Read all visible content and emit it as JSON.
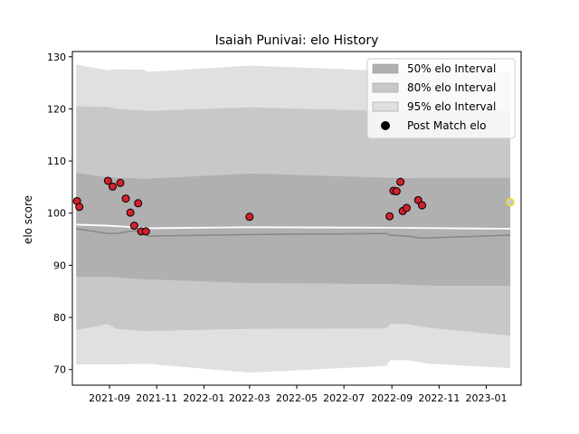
{
  "chart_data": {
    "type": "scatter",
    "title": "Isaiah Punivai: elo History",
    "xlabel": "",
    "ylabel": "elo score",
    "ylim": [
      67,
      131
    ],
    "xlim": [
      "2021-07-15",
      "2023-02-15"
    ],
    "x_ticks": [
      "2021-09",
      "2021-11",
      "2022-01",
      "2022-03",
      "2022-05",
      "2022-07",
      "2022-09",
      "2022-11",
      "2023-01"
    ],
    "y_ticks": [
      70,
      80,
      90,
      100,
      110,
      120,
      130
    ],
    "grid": false,
    "legend_placement": "top-right",
    "legend": [
      {
        "label": "50% elo Interval",
        "color": "#b0b0b0"
      },
      {
        "label": "80% elo Interval",
        "color": "#c8c8c8"
      },
      {
        "label": "95% elo Interval",
        "color": "#e0e0e0"
      },
      {
        "label": "Post Match elo",
        "color": "#000000"
      }
    ],
    "interval_x": [
      "2021-07-20",
      "2021-08-30",
      "2021-09-10",
      "2021-10-15",
      "2021-10-20",
      "2022-03-01",
      "2022-08-25",
      "2022-08-30",
      "2022-09-20",
      "2022-10-20",
      "2023-02-01"
    ],
    "bands": {
      "p95_upper": [
        128.5,
        127.4,
        127.6,
        127.5,
        127.1,
        128.3,
        127.3,
        127.2,
        127.2,
        127.2,
        127.2
      ],
      "p95_lower": [
        71.0,
        71.0,
        71.0,
        71.1,
        71.1,
        69.4,
        70.7,
        71.8,
        71.8,
        71.1,
        70.3
      ],
      "p80_upper": [
        120.5,
        120.4,
        120.0,
        119.7,
        119.6,
        120.3,
        119.6,
        119.6,
        119.6,
        119.6,
        119.6
      ],
      "p80_lower": [
        77.6,
        78.7,
        77.8,
        77.4,
        77.4,
        77.8,
        77.9,
        78.8,
        78.7,
        78.0,
        76.5
      ],
      "p50_upper": [
        107.7,
        106.9,
        106.8,
        106.6,
        106.6,
        107.6,
        106.8,
        106.8,
        106.7,
        106.8,
        106.8
      ],
      "p50_lower": [
        87.8,
        87.8,
        87.7,
        87.3,
        87.3,
        86.6,
        86.4,
        86.4,
        86.3,
        86.1,
        86.1
      ]
    },
    "mean_line": {
      "color": "#888888",
      "x": [
        "2021-07-20",
        "2021-08-30",
        "2021-09-10",
        "2021-10-01",
        "2021-10-15",
        "2021-10-20",
        "2022-03-01",
        "2022-08-25",
        "2022-08-30",
        "2022-09-20",
        "2022-10-10",
        "2023-02-01"
      ],
      "y": [
        97.0,
        96.1,
        96.1,
        96.6,
        96.5,
        95.6,
        95.9,
        96.1,
        95.8,
        95.6,
        95.2,
        95.8
      ]
    },
    "median_line": {
      "color": "#ffffff",
      "x": [
        "2021-07-20",
        "2021-08-30",
        "2021-09-10",
        "2021-10-15",
        "2021-10-20",
        "2022-03-01",
        "2022-08-30",
        "2023-02-01"
      ],
      "y": [
        97.8,
        97.6,
        97.5,
        97.2,
        97.1,
        97.3,
        97.2,
        97.0
      ]
    },
    "series": [
      {
        "name": "Post Match elo",
        "marker": "circle",
        "fill": "#d3212d",
        "edge": "#000000",
        "x": [
          "2021-07-21",
          "2021-07-24",
          "2021-08-30",
          "2021-09-05",
          "2021-09-15",
          "2021-09-22",
          "2021-09-28",
          "2021-10-03",
          "2021-10-08",
          "2021-10-12",
          "2021-10-18",
          "2022-03-01",
          "2022-08-29",
          "2022-09-03",
          "2022-09-07",
          "2022-09-12",
          "2022-09-15",
          "2022-09-20",
          "2022-10-05",
          "2022-10-10"
        ],
        "y": [
          102.3,
          101.2,
          106.2,
          105.1,
          105.8,
          102.8,
          100.1,
          97.6,
          101.9,
          96.5,
          96.5,
          99.3,
          99.4,
          104.3,
          104.2,
          106.0,
          100.4,
          101.0,
          102.5,
          101.5
        ],
        "highlight": {
          "x": "2023-02-01",
          "y": 102.1,
          "fill": "#c8c8c8",
          "edge": "#f0e000"
        }
      }
    ]
  }
}
